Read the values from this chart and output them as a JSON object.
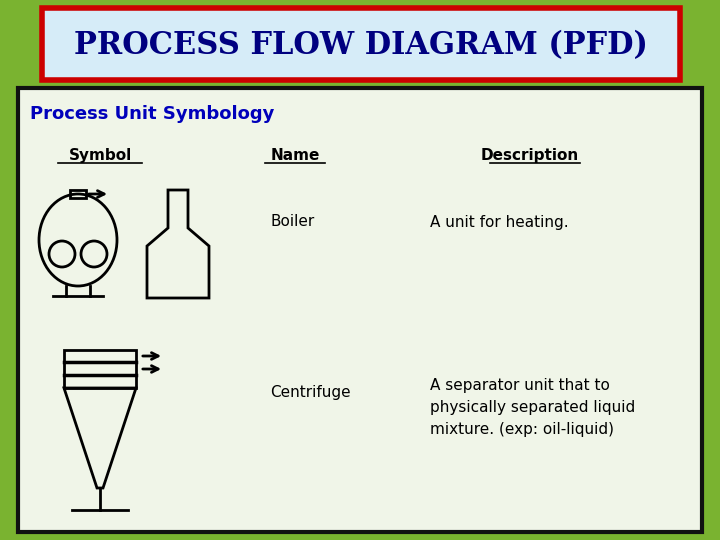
{
  "title": "PROCESS FLOW DIAGRAM (PFD)",
  "subtitle": "Process Unit Symbology",
  "col_symbol": "Symbol",
  "col_name": "Name",
  "col_desc": "Description",
  "row1_name": "Boiler",
  "row1_desc": "A unit for heating.",
  "row2_name": "Centrifuge",
  "row2_desc": "A separator unit that to\nphysically separated liquid\nmixture. (exp: oil-liquid)",
  "bg_outer": "#7ab330",
  "bg_inner": "#f0f5e8",
  "title_bg": "#d6ecf8",
  "title_border": "#cc0000",
  "title_color": "#000080",
  "subtitle_color": "#0000bb",
  "header_color": "#000000",
  "body_color": "#000000",
  "symbol_color": "#000000",
  "lw": 2.0
}
